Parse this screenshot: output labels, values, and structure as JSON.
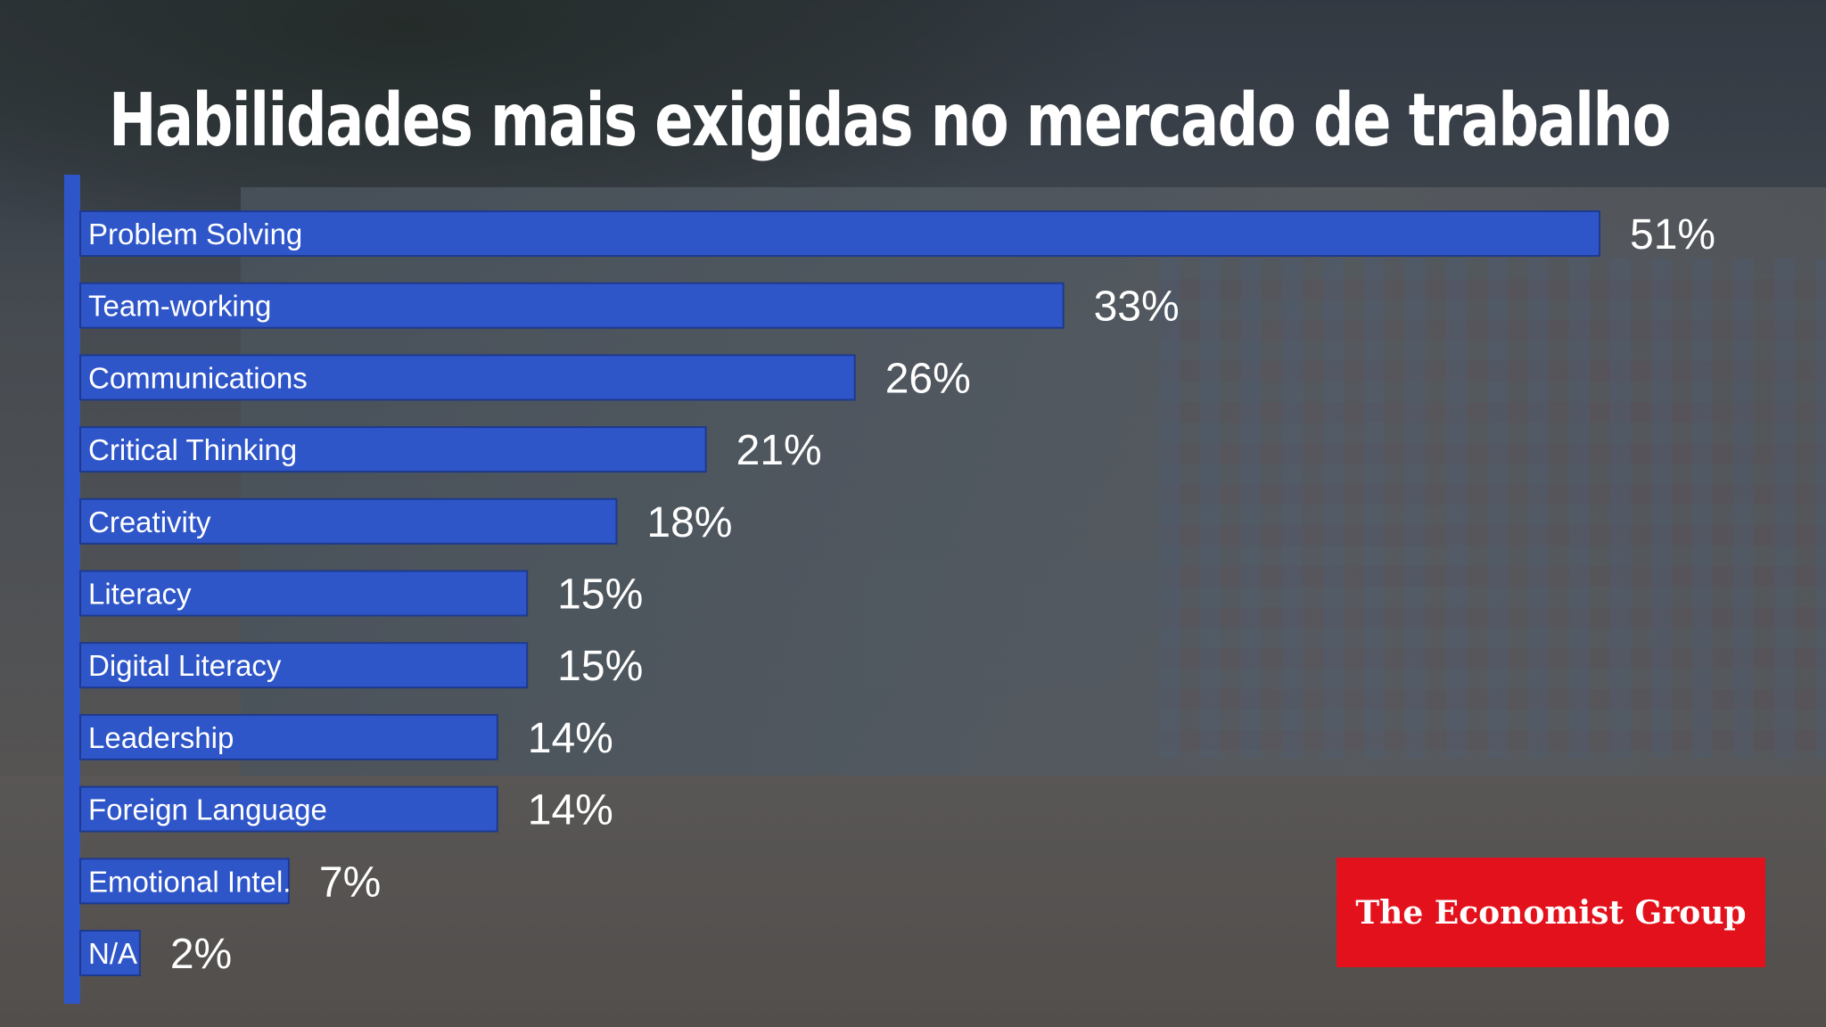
{
  "title": "Habilidades mais exigidas no mercado de trabalho",
  "logo": {
    "text": "The Economist Group",
    "color": "#e3111b"
  },
  "colors": {
    "bar": "#2f56c9",
    "axis": "#2f56c9"
  },
  "chart_data": {
    "type": "bar",
    "orientation": "horizontal",
    "title": "Habilidades mais exigidas no mercado de trabalho",
    "categories": [
      "Problem Solving",
      "Team-working",
      "Communications",
      "Critical Thinking",
      "Creativity",
      "Literacy",
      "Digital Literacy",
      "Leadership",
      "Foreign Language",
      "Emotional Intel.",
      "N/A"
    ],
    "values": [
      51,
      33,
      26,
      21,
      18,
      15,
      15,
      14,
      14,
      7,
      2
    ],
    "value_labels": [
      "51%",
      "33%",
      "26%",
      "21%",
      "18%",
      "15%",
      "15%",
      "14%",
      "14%",
      "7%",
      "2%"
    ],
    "xlabel": "",
    "ylabel": "",
    "grid": false
  }
}
